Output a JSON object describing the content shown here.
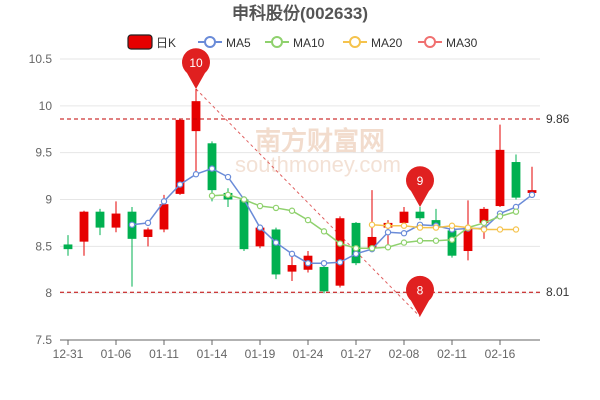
{
  "chart_data": {
    "type": "candlestick",
    "title": "申科股份(002633)",
    "watermark_text": [
      "南方财富网",
      "southmoney.com"
    ],
    "legend": [
      {
        "name": "日K",
        "color": "#e60000",
        "kind": "box"
      },
      {
        "name": "MA5",
        "color": "#6a8bd8",
        "kind": "circle"
      },
      {
        "name": "MA10",
        "color": "#8fd16d",
        "kind": "circle"
      },
      {
        "name": "MA20",
        "color": "#f5c34d",
        "kind": "circle"
      },
      {
        "name": "MA30",
        "color": "#f07070",
        "kind": "circle"
      }
    ],
    "ylim": [
      7.5,
      10.5
    ],
    "y_ticks": [
      7.5,
      8,
      8.5,
      9,
      9.5,
      10,
      10.5
    ],
    "y_tick_labels": [
      "7.5",
      "8",
      "8.5",
      "9",
      "9.5",
      "10",
      "10.5"
    ],
    "x_ticks": [
      {
        "index": 0,
        "label": "12-31"
      },
      {
        "index": 3,
        "label": "01-06"
      },
      {
        "index": 6,
        "label": "01-11"
      },
      {
        "index": 9,
        "label": "01-14"
      },
      {
        "index": 12,
        "label": "01-19"
      },
      {
        "index": 15,
        "label": "01-24"
      },
      {
        "index": 18,
        "label": "01-27"
      },
      {
        "index": 21,
        "label": "02-08"
      },
      {
        "index": 24,
        "label": "02-11"
      },
      {
        "index": 27,
        "label": "02-16"
      }
    ],
    "candles": [
      {
        "o": 8.52,
        "c": 8.47,
        "h": 8.62,
        "l": 8.4
      },
      {
        "o": 8.55,
        "c": 8.87,
        "h": 8.88,
        "l": 8.4
      },
      {
        "o": 8.87,
        "c": 8.7,
        "h": 8.9,
        "l": 8.62
      },
      {
        "o": 8.7,
        "c": 8.85,
        "h": 8.98,
        "l": 8.65
      },
      {
        "o": 8.87,
        "c": 8.58,
        "h": 8.92,
        "l": 8.07
      },
      {
        "o": 8.6,
        "c": 8.68,
        "h": 8.7,
        "l": 8.5
      },
      {
        "o": 8.68,
        "c": 8.95,
        "h": 9.05,
        "l": 8.65
      },
      {
        "o": 9.06,
        "c": 9.85,
        "h": 9.86,
        "l": 9.05
      },
      {
        "o": 9.73,
        "c": 10.05,
        "h": 10.18,
        "l": 9.28
      },
      {
        "o": 9.6,
        "c": 9.1,
        "h": 9.62,
        "l": 8.98
      },
      {
        "o": 9.07,
        "c": 9.0,
        "h": 9.12,
        "l": 8.92
      },
      {
        "o": 9.0,
        "c": 8.47,
        "h": 9.02,
        "l": 8.45
      },
      {
        "o": 8.5,
        "c": 8.7,
        "h": 8.72,
        "l": 8.48
      },
      {
        "o": 8.68,
        "c": 8.2,
        "h": 8.7,
        "l": 8.15
      },
      {
        "o": 8.23,
        "c": 8.3,
        "h": 8.45,
        "l": 8.13
      },
      {
        "o": 8.25,
        "c": 8.4,
        "h": 8.45,
        "l": 8.22
      },
      {
        "o": 8.28,
        "c": 8.02,
        "h": 8.3,
        "l": 8.0
      },
      {
        "o": 8.08,
        "c": 8.8,
        "h": 8.82,
        "l": 8.06
      },
      {
        "o": 8.75,
        "c": 8.32,
        "h": 8.76,
        "l": 8.3
      },
      {
        "o": 8.48,
        "c": 8.6,
        "h": 9.1,
        "l": 8.45
      },
      {
        "o": 8.7,
        "c": 8.75,
        "h": 8.78,
        "l": 8.48
      },
      {
        "o": 8.75,
        "c": 8.87,
        "h": 8.92,
        "l": 8.7
      },
      {
        "o": 8.87,
        "c": 8.8,
        "h": 8.92,
        "l": 8.78
      },
      {
        "o": 8.78,
        "c": 8.72,
        "h": 8.9,
        "l": 8.7
      },
      {
        "o": 8.67,
        "c": 8.4,
        "h": 8.7,
        "l": 8.38
      },
      {
        "o": 8.45,
        "c": 8.7,
        "h": 8.99,
        "l": 8.35
      },
      {
        "o": 8.75,
        "c": 8.9,
        "h": 8.92,
        "l": 8.58
      },
      {
        "o": 8.93,
        "c": 9.53,
        "h": 9.8,
        "l": 8.92
      },
      {
        "o": 9.4,
        "c": 9.02,
        "h": 9.48,
        "l": 9.0
      },
      {
        "o": 9.07,
        "c": 9.1,
        "h": 9.35,
        "l": 9.05
      }
    ],
    "series": [
      {
        "name": "MA5",
        "color": "#6a8bd8",
        "start": 5,
        "values": [
          8.73,
          8.75,
          8.98,
          9.16,
          9.27,
          9.33,
          9.24,
          9.0,
          8.7,
          8.54,
          8.42,
          8.32,
          8.32,
          8.33,
          8.42,
          8.47,
          8.65,
          8.64,
          8.73,
          8.72,
          8.68,
          8.69,
          8.69,
          8.85,
          8.92,
          9.05
        ]
      },
      {
        "name": "MA10",
        "color": "#8fd16d",
        "start": 10,
        "values": [
          9.04,
          9.05,
          9.0,
          8.93,
          8.91,
          8.88,
          8.78,
          8.66,
          8.53,
          8.48,
          8.48,
          8.49,
          8.54,
          8.56,
          8.56,
          8.57,
          8.7,
          8.75,
          8.82,
          8.87
        ]
      },
      {
        "name": "MA20",
        "color": "#f5c34d",
        "start": 20,
        "values": [
          8.73,
          8.72,
          8.72,
          8.7,
          8.7,
          8.72,
          8.7,
          8.68,
          8.68,
          8.68
        ]
      },
      {
        "name": "MA30",
        "color": "#f07070",
        "start": 30,
        "values": []
      }
    ],
    "reference_lines": [
      {
        "value": 9.86,
        "label": "9.86"
      },
      {
        "value": 8.01,
        "label": "8.01"
      }
    ],
    "markers": [
      {
        "index": 8,
        "value": 10.18,
        "label": "10"
      },
      {
        "index": 22,
        "value": 8.92,
        "label": "9"
      },
      {
        "index": 22,
        "value": 7.75,
        "label": "8"
      }
    ],
    "trend_line": {
      "from_index": 8,
      "from_value": 10.18,
      "to_index": 22,
      "to_value": 7.75
    }
  }
}
